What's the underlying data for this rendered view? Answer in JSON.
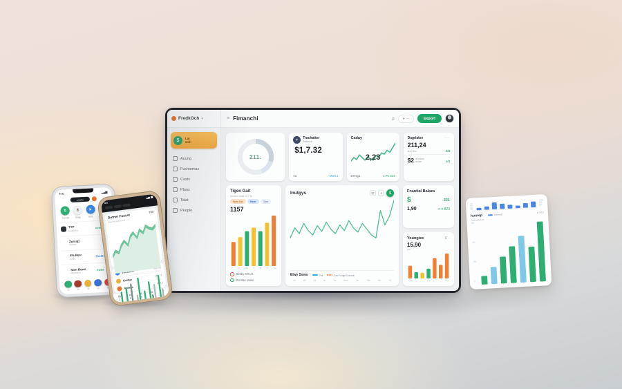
{
  "accents": {
    "green": "#1fa566",
    "orange": "#ef7f35",
    "yellow": "#f2c230",
    "blue": "#3ba7e0",
    "royal_blue": "#4a86e8",
    "sidebar_active": "#f2b14e"
  },
  "dashboard": {
    "header": {
      "brand": "FredkOch",
      "brand_caret": "▾",
      "hamburger": "≡",
      "title": "Fimanchi",
      "search_glyph": "⌕",
      "pill_icon": "➤",
      "pill_text": "—",
      "export_label": "Export"
    },
    "sidebar": {
      "active": {
        "icon": "$",
        "line1": "Lar",
        "line2": "wch"
      },
      "items": [
        {
          "label": "Auung"
        },
        {
          "label": "Fuchtemas"
        },
        {
          "label": "Casts"
        },
        {
          "label": "Plans"
        },
        {
          "label": "Talat"
        },
        {
          "label": "People"
        }
      ]
    },
    "cards": {
      "donut": {
        "value": "211."
      },
      "balance": {
        "icon": "✦",
        "title": "Trachatter",
        "subtitle": "Balance",
        "value": "$1,7.32",
        "footer_left": "su",
        "footer_right": "Mart.1"
      },
      "cash": {
        "title": "Caday",
        "value": "2,23",
        "footer_left": "Denga",
        "footer_right": "1.Pk 333"
      },
      "expenses": {
        "title": "Dagrlatse",
        "menu": "···",
        "value": "211,24",
        "note": "tect few",
        "delta": "9/3",
        "value2": "$2",
        "value2_note1": "a loniani",
        "value2_note2": "amaa",
        "delta2": "a/3",
        "delta2_caret": "⌃"
      },
      "target": {
        "title": "Tigen Gait",
        "subnote": "Amains Asta 44.7 fa",
        "pills": [
          {
            "label": "Spm Cat",
            "bg": "#fbe2cd",
            "fg": "#d96a1e"
          },
          {
            "label": "Smar",
            "bg": "#d5e6fa",
            "fg": "#3b6fd4"
          },
          {
            "label": "Cam",
            "bg": "#e9f0f9",
            "fg": "#7a8ba3"
          }
        ],
        "value": "1157",
        "x_labels": [
          "1",
          "a",
          "cat",
          "4",
          "w",
          "3",
          "7a"
        ],
        "legend": [
          {
            "label": "Dimby CRUS",
            "ring": "#e2533b"
          },
          {
            "label": "Evertse Vame",
            "ring": "#2fae72"
          }
        ]
      },
      "insights": {
        "title": "Inutgys",
        "ghost1": "▤",
        "ghost2": "▾",
        "action_glyph": "$",
        "series_label": "Elwy Sews",
        "legend1": "Tet",
        "legend2": "Dev Voge Dansk",
        "menu": "···",
        "x_labels": [
          "1e",
          "c5",
          "14",
          "m",
          "7w",
          "Ame",
          "3a",
          "78a",
          "9m",
          "76"
        ]
      },
      "fin_balance": {
        "title": "Fnantial Balaza",
        "dollar": "$",
        "right1": "331",
        "left2": "1,90",
        "right2": "n ± 823"
      },
      "youngies": {
        "title": "Youngies",
        "menu": "·E·",
        "value": "15,90",
        "note": "am",
        "x_labels": [
          "Tvda",
          "Trw",
          "arva"
        ]
      }
    }
  },
  "phone1": {
    "time": "9:41",
    "status_icons": "▂▄▆",
    "header_pill": "ametra",
    "actions": [
      {
        "glyph": "⇅",
        "label": "Tramdit",
        "bg": "#2fae72",
        "fg": "#ffffff"
      },
      {
        "glyph": "$",
        "label": "Gidgs",
        "bg": "#eef0f2",
        "fg": "#3c434a"
      },
      {
        "glyph": "➤",
        "label": "Aerti",
        "bg": "#3b87e0",
        "fg": "#ffffff"
      },
      {
        "glyph": "✦",
        "label": "Ant O",
        "bg": "#e8772e",
        "fg": "#ffffff"
      }
    ],
    "rows": [
      {
        "title": "TYP",
        "sub": "tosaonka",
        "right_text": "ocnd",
        "right_color": "#2fae72",
        "avatar": "#2b2f36",
        "right_icon": "transparent"
      },
      {
        "title": "Zursajz",
        "sub": "Fodset",
        "right_text": "",
        "right_color": "#8a9198",
        "avatar": "transparent",
        "right_icon": "#e8772e"
      },
      {
        "title": "0% Rew",
        "sub": "Eodr",
        "right_text": "CLUB",
        "right_color": "#3b87e0",
        "avatar": "transparent",
        "right_icon": "transparent"
      },
      {
        "title": "Sdm Bewz",
        "sub": "Moddunst",
        "right_text": "F23%",
        "right_color": "#2fae72",
        "avatar": "transparent",
        "right_icon": "transparent"
      }
    ],
    "dock": [
      {
        "bg": "#2fae72",
        "label": "da"
      },
      {
        "bg": "#a33b2e",
        "label": "sb"
      },
      {
        "bg": "#e9b13b",
        "label": "mt"
      },
      {
        "bg": "#3b6fd4",
        "label": "qa"
      },
      {
        "bg": "#d43b3b",
        "label": "ke"
      }
    ]
  },
  "phone2": {
    "time": "9:0",
    "status_icons": "▃▅ ⬤",
    "card_title": "Dutner Foesst",
    "card_value": "780",
    "card_sub": "Bamreicayta omd",
    "rows": [
      {
        "icon": "#3b87e0",
        "title": "Winkdom",
        "right": "402.08"
      },
      {
        "icon": "#e9b13b",
        "title": "Gothar",
        "right": "140.77"
      },
      {
        "icon": "#e8772e",
        "title": "Amlets",
        "right": "90.12"
      }
    ],
    "tabs": [
      {
        "label": "1"
      },
      {
        "label": "5"
      },
      {
        "label": "5"
      },
      {
        "label": "2"
      },
      {
        "label": "3"
      }
    ]
  },
  "float_card": {
    "title": "hunrep",
    "subtitle": "Swesa Deus",
    "legend": "Amrests",
    "right_label": "w 33.2",
    "top_axis_left": [
      "4m",
      "3m",
      "2m",
      "1m"
    ],
    "top_axis_right": [
      "120k",
      "80k",
      "40k",
      "0"
    ],
    "bot_axis_left": [
      "48k",
      "32k",
      "16k",
      "0"
    ],
    "x_labels": [
      "1",
      "4",
      "8",
      "4",
      "16",
      "4",
      "3"
    ]
  },
  "chart_data": [
    {
      "id": "overview-donut",
      "type": "donut",
      "center": "211.",
      "thickness": 7,
      "segments": [
        {
          "pct": 30,
          "color": "#c7d2db"
        },
        {
          "pct": 14,
          "color": "#dbe4ee"
        },
        {
          "pct": 56,
          "color": "#e9edf0"
        }
      ]
    },
    {
      "id": "cash-trend",
      "type": "line",
      "color": "#47b98a",
      "stroke": 1.6,
      "values": [
        34,
        44,
        38,
        52,
        44,
        36,
        46,
        40,
        36,
        50,
        44,
        58,
        54,
        66,
        60,
        74,
        88
      ]
    },
    {
      "id": "target-goal-bars",
      "type": "bar",
      "values": [
        40,
        48,
        58,
        64,
        58,
        72,
        84
      ],
      "colors": [
        "#ef7f35",
        "#f2c230",
        "#2fae72",
        "#f2c230",
        "#2fae72",
        "#f2c230",
        "#ef7f35"
      ]
    },
    {
      "id": "insights-sparkline",
      "type": "line",
      "color": "#4fbf8f",
      "stroke": 1.3,
      "values": [
        40,
        54,
        46,
        60,
        50,
        44,
        57,
        49,
        62,
        52,
        46,
        58,
        50,
        64,
        54,
        48,
        60,
        52,
        44,
        40,
        78,
        58,
        70,
        92
      ]
    },
    {
      "id": "revenue-combo",
      "type": "combo",
      "bars": [
        52,
        44,
        18,
        10,
        16,
        22,
        8,
        10,
        16,
        22,
        28,
        34,
        38,
        26,
        60,
        70,
        30,
        74,
        84,
        58
      ],
      "bar_colors": [
        "#3ba7e0",
        "#3ba7e0",
        "#3ba7e0",
        "#3ba7e0",
        "#3ba7e0",
        "#3ba7e0",
        "#ef7f35",
        "#35b77c",
        "#35b77c",
        "#35b77c",
        "#35b77c",
        "#35b77c",
        "#2fb56f",
        "#ef7f35",
        "#ef7f35",
        "#ef7f35",
        "#ef7f35",
        "#ef7f35",
        "#ef7f35",
        "#3ba7e0"
      ],
      "line": [
        12,
        14,
        13,
        16,
        15,
        18,
        17,
        22,
        28,
        34,
        40,
        46,
        52,
        50,
        58,
        66,
        64,
        74,
        86,
        80
      ],
      "line_color": "#c2cad1"
    },
    {
      "id": "youngies-bars",
      "type": "bar",
      "values": [
        45,
        22,
        20,
        35,
        72,
        48,
        88
      ],
      "colors": [
        "#ef7f35",
        "#2fae72",
        "#f2c230",
        "#2fae72",
        "#ef7f35",
        "#ef7f35",
        "#ef7f35"
      ]
    },
    {
      "id": "float-top-bars",
      "type": "bar",
      "values": [
        30,
        42,
        85,
        65,
        48,
        32,
        58,
        72
      ],
      "colors": "#4a86e8"
    },
    {
      "id": "float-bottom-bars",
      "type": "bar",
      "values": [
        12,
        24,
        38,
        52,
        66,
        50,
        85
      ],
      "colors": [
        "#2fae72",
        "#7fc8ea",
        "#2fae72",
        "#2fae72",
        "#7fc8ea",
        "#2fae72",
        "#2fae72"
      ]
    },
    {
      "id": "phone2-area",
      "type": "area",
      "color": "#6fc49b",
      "fill": "#ddeee4",
      "stroke": 1.1,
      "values": [
        22,
        30,
        27,
        38,
        44,
        37,
        50,
        55,
        47,
        58,
        53,
        63,
        59,
        57,
        62
      ]
    },
    {
      "id": "phone2-minibars",
      "type": "bar",
      "values": [
        22,
        38,
        16,
        42,
        26,
        46,
        20,
        32,
        52,
        26,
        36,
        20,
        46,
        30,
        42,
        24,
        52,
        36
      ],
      "colors": [
        "#a9bcb2",
        "#2fae72",
        "#c6d2cb",
        "#2fae72",
        "#a9bcb2",
        "#7a8f85",
        "#2fae72",
        "#a9bcb2",
        "#2fae72",
        "#c6d2cb",
        "#2fae72",
        "#a9bcb2",
        "#2fae72",
        "#7a8f85",
        "#a9bcb2",
        "#2fae72",
        "#2fae72",
        "#a9bcb2"
      ]
    }
  ]
}
